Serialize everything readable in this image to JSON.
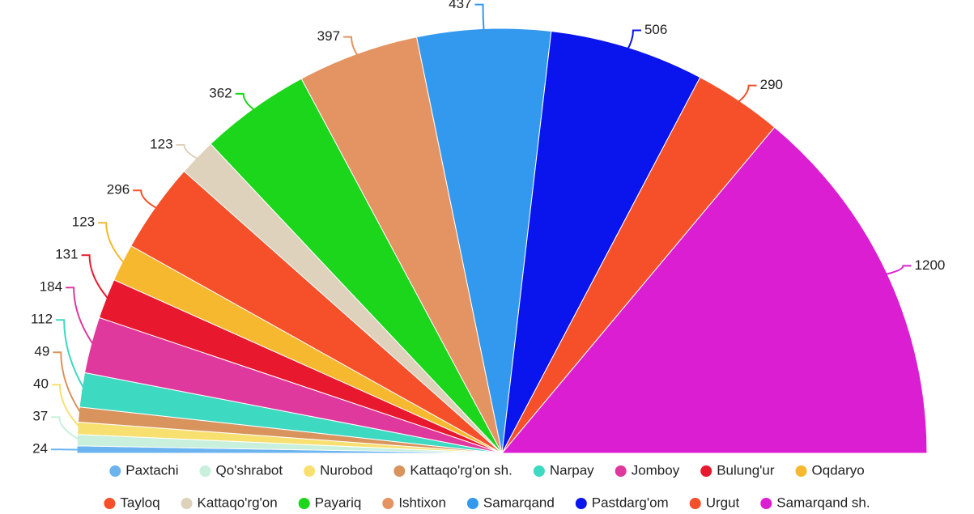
{
  "chart_data": {
    "type": "pie",
    "categories": [
      "Paxtachi",
      "Qo'shrabot",
      "Nurobod",
      "Kattaqo'rg'on sh.",
      "Narpay",
      "Jomboy",
      "Bulung'ur",
      "Oqdaryo",
      "Tayloq",
      "Kattaqo'rg'on",
      "Payariq",
      "Ishtixon",
      "Samarqand",
      "Pastdarg'om",
      "Urgut",
      "Samarqand sh."
    ],
    "values": [
      24,
      37,
      40,
      49,
      112,
      184,
      131,
      123,
      296,
      123,
      362,
      397,
      437,
      506,
      290,
      1200
    ],
    "colors": [
      "#6cb4f0",
      "#c8f0dc",
      "#f8e070",
      "#d9945e",
      "#3dd9c1",
      "#e0399e",
      "#e8192e",
      "#f5b82e",
      "#f5502a",
      "#ded2bc",
      "#1bd61b",
      "#e49462",
      "#3399ee",
      "#0a14ec",
      "#f5502a",
      "#dc1ed2"
    ],
    "legend": "bottom"
  }
}
